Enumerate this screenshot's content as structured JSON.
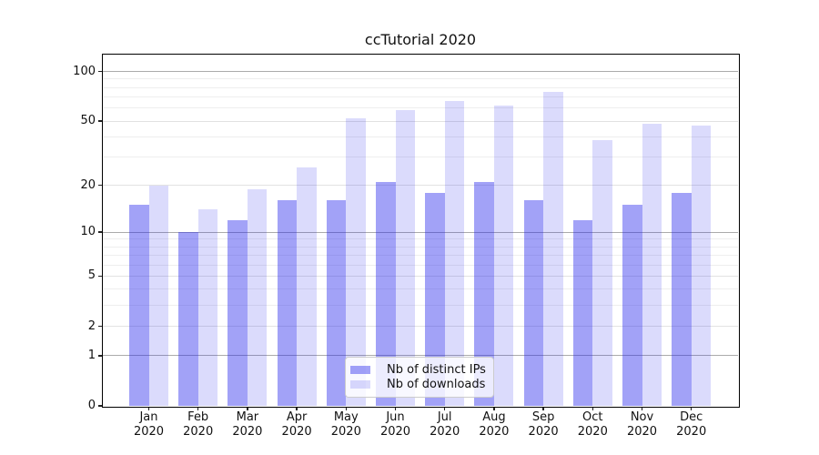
{
  "title": "ccTutorial 2020",
  "chart_data": {
    "type": "bar",
    "title": "ccTutorial 2020",
    "categories": [
      "Jan 2020",
      "Feb 2020",
      "Mar 2020",
      "Apr 2020",
      "May 2020",
      "Jun 2020",
      "Jul 2020",
      "Aug 2020",
      "Sep 2020",
      "Oct 2020",
      "Nov 2020",
      "Dec 2020"
    ],
    "series": [
      {
        "name": "Nb of distinct IPs",
        "color": "rgba(33,33,237,0.42)",
        "solid_color": "#a6a6f7",
        "values": [
          15,
          10,
          12,
          16,
          16,
          21,
          18,
          21,
          16,
          12,
          15,
          18
        ]
      },
      {
        "name": "Nb of downloads",
        "color": "rgba(33,33,237,0.16)",
        "solid_color": "#dcdcf9",
        "values": [
          20,
          14,
          19,
          26,
          52,
          58,
          66,
          62,
          75,
          38,
          48,
          47
        ]
      }
    ],
    "yscale": "log1p",
    "yticks": [
      0,
      1,
      2,
      5,
      10,
      20,
      50,
      100
    ],
    "minor_gridlines": [
      3,
      4,
      6,
      7,
      8,
      9,
      30,
      40,
      60,
      70,
      80,
      90
    ],
    "ylim": [
      0,
      128
    ],
    "grid": true,
    "legend_position": "lower center",
    "grid_colors": {
      "power_of_ten": "#ababab",
      "labeled": "#e2e2e2",
      "minor": "#eeeeee"
    }
  }
}
